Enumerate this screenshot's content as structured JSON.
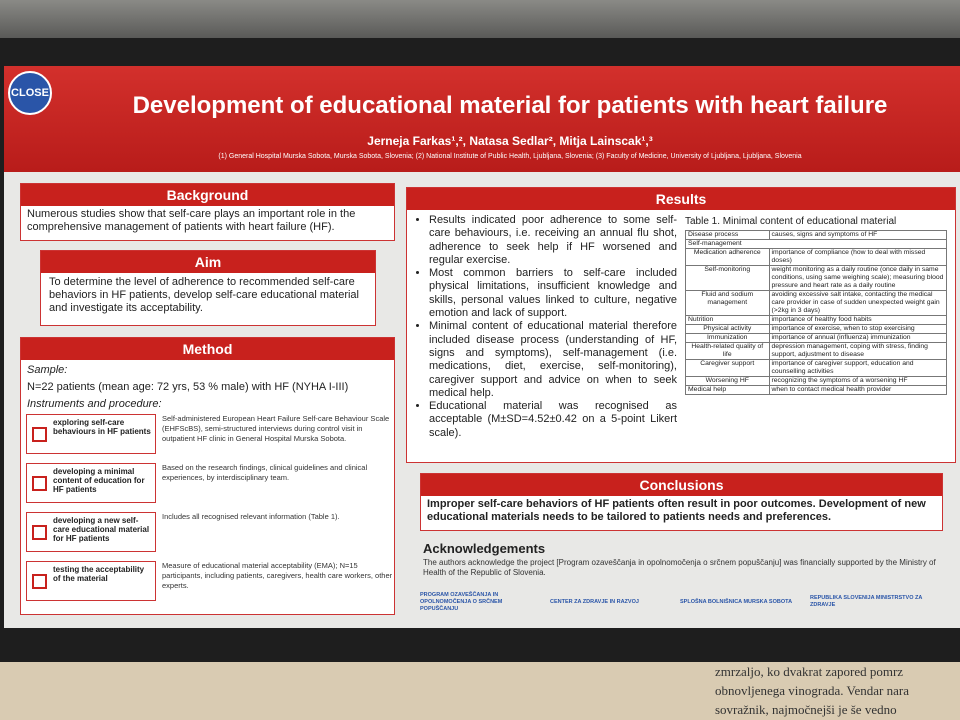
{
  "header": {
    "close_button": "CLOSE",
    "title": "Development of educational material for patients with heart failure",
    "authors": "Jerneja Farkas¹,², Natasa Sedlar², Mitja Lainscak¹,³",
    "affiliations": "(1) General Hospital Murska Sobota, Murska Sobota, Slovenia; (2) National Institute of Public Health, Ljubljana, Slovenia; (3) Faculty of Medicine, University of Ljubljana, Ljubljana, Slovenia"
  },
  "background": {
    "heading": "Background",
    "text": "Numerous studies show that self-care plays an important role in the comprehensive management of patients with heart failure (HF)."
  },
  "aim": {
    "heading": "Aim",
    "text": "To determine the level of adherence to recommended self-care behaviors in HF patients, develop self-care educational material and investigate its acceptability."
  },
  "method": {
    "heading": "Method",
    "sample_label": "Sample:",
    "sample_text": "N=22 patients (mean age: 72 yrs, 53 % male) with HF (NYHA I-III)",
    "instruments_label": "Instruments and procedure:",
    "steps": [
      {
        "label": "exploring self-care behaviours in HF patients",
        "text": "Self-administered European Heart Failure Self-care Behaviour Scale (EHFScBS), semi-structured interviews during control visit in outpatient HF clinic in General Hospital Murska Sobota."
      },
      {
        "label": "developing a minimal content of education for HF patients",
        "text": "Based on the research findings, clinical guidelines and clinical experiences, by interdisciplinary team."
      },
      {
        "label": "developing a new self-care educational material for HF patients",
        "text": "Includes all recognised relevant information (Table 1)."
      },
      {
        "label": "testing the acceptability of the material",
        "text": "Measure of educational material acceptability (EMA); N=15 participants, including patients, caregivers, health care workers, other experts."
      }
    ]
  },
  "results": {
    "heading": "Results",
    "bullets": [
      "Results indicated poor adherence to some self-care behaviours, i.e. receiving an annual flu shot, adherence to seek help if HF worsened and regular exercise.",
      "Most common barriers to self-care included physical limitations, insufficient knowledge and skills, personal values linked to culture, negative emotion and lack of support.",
      "Minimal content of educational material therefore included disease process (understanding of HF, signs and symptoms), self-management (i.e. medications, diet, exercise, self-monitoring), caregiver support and advice on when to seek medical help.",
      "Educational material was recognised as acceptable (M±SD=4.52±0.42 on a 5-point Likert scale)."
    ],
    "table": {
      "title": "Table 1. Minimal content of educational material",
      "rows": [
        [
          "Disease process",
          "causes, signs and symptoms of HF"
        ],
        [
          "Self-management"
        ],
        [
          "Medication adherence",
          "importance of compliance (how to deal with missed doses)"
        ],
        [
          "Self-monitoring",
          "weight monitoring as a daily routine (once daily in same conditions, using same weighing scale); measuring blood pressure and heart rate as a daily routine"
        ],
        [
          "Fluid and sodium management",
          "avoiding excessive salt intake, contacting the medical care provider in case of sudden unexpected weight gain (>2kg in 3 days)"
        ],
        [
          "Nutrition",
          "importance of healthy food habits"
        ],
        [
          "Physical activity",
          "importance of exercise, when to stop exercising"
        ],
        [
          "Immunization",
          "importance of annual (influenza) immunization"
        ],
        [
          "Health-related quality of life",
          "depression management, coping with stress, finding support, adjustment to disease"
        ],
        [
          "Caregiver support",
          "importance of caregiver support, education and counselling activities"
        ],
        [
          "Worsening HF",
          "recognizing the symptoms of a worsening HF"
        ],
        [
          "Medical help",
          "when to contact medical health provider"
        ]
      ]
    }
  },
  "conclusions": {
    "heading": "Conclusions",
    "text": "Improper self-care behaviors of HF patients often result in poor outcomes. Development of new educational materials needs to be tailored to patients needs and preferences."
  },
  "acknowledgements": {
    "heading": "Acknowledgements",
    "text": "The authors acknowledge the project [Program ozaveščanja in opolnomočenja o srčnem popuščanju] was financially supported by the Ministry of Health of the Republic of Slovenia."
  },
  "logos": [
    "PROGRAM OZAVEŠČANJA IN OPOLNOMOČENJA O SRČNEM POPUŠČANJU",
    "CENTER ZA ZDRAVJE IN RAZVOJ",
    "SPLOŠNA BOLNIŠNICA MURSKA SOBOTA",
    "REPUBLIKA SLOVENIJA MINISTRSTVO ZA ZDRAVJE"
  ],
  "wall_text": [
    "zmrzaljo, ko dvakrat zapored pomrz",
    "obnovljenega vinograda. Vendar nara",
    "sovražnik, najmočnejši je še vedno"
  ]
}
